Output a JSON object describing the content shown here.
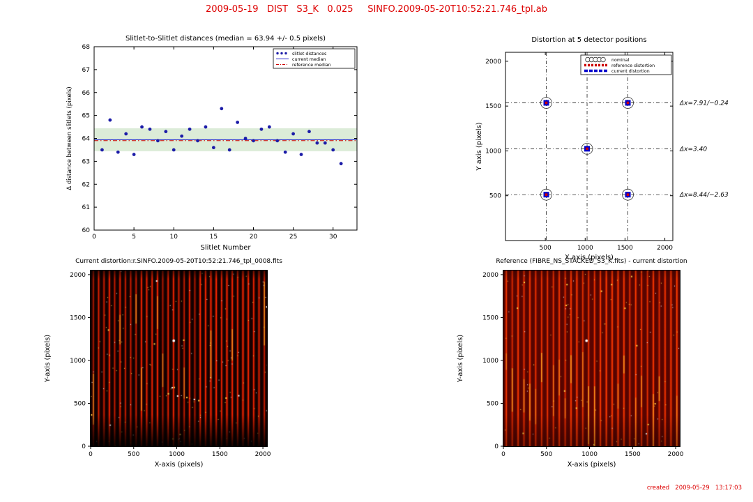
{
  "page": {
    "title": "2009-05-19   DIST   S3_K   0.025     SINFO.2009-05-20T10:52:21.746_tpl.ab",
    "title_color": "#dd0000",
    "footer": "created   2009-05-29   13:17:03"
  },
  "chart_data": [
    {
      "id": "slitlet_distances",
      "type": "scatter",
      "title": "Slitlet-to-Slitlet distances (median =  63.94 +/- 0.5 pixels)",
      "xlabel": "Slitlet Number",
      "ylabel": "Δ distance between slitlets (pixels)",
      "xlim": [
        0,
        33
      ],
      "ylim": [
        60,
        68
      ],
      "xticks": [
        0,
        5,
        10,
        15,
        20,
        25,
        30
      ],
      "yticks": [
        60,
        61,
        62,
        63,
        64,
        65,
        66,
        67,
        68
      ],
      "median": 63.94,
      "reference_median": 63.9,
      "band_halfwidth": 0.5,
      "x": [
        1,
        2,
        3,
        4,
        5,
        6,
        7,
        8,
        9,
        10,
        11,
        12,
        13,
        14,
        15,
        16,
        17,
        18,
        19,
        20,
        21,
        22,
        23,
        24,
        25,
        26,
        27,
        28,
        29,
        30,
        31
      ],
      "y": [
        63.5,
        64.8,
        63.4,
        64.2,
        63.3,
        64.5,
        64.4,
        63.9,
        64.3,
        63.5,
        64.1,
        64.4,
        63.9,
        64.5,
        63.6,
        65.3,
        63.5,
        64.7,
        64.0,
        63.9,
        64.4,
        64.5,
        63.9,
        63.4,
        64.2,
        63.3,
        64.3,
        63.8,
        63.8,
        63.5,
        62.9
      ],
      "legend": [
        {
          "label": "slitlet distances",
          "marker": "dots"
        },
        {
          "label": "current median",
          "marker": "line"
        },
        {
          "label": "reference median",
          "marker": "dashdot"
        }
      ],
      "colors": {
        "points": "#1c1ca8",
        "median_line": "#2222cc",
        "reference_line": "#cc0000",
        "band": "#dcecd8"
      }
    },
    {
      "id": "distortion_positions",
      "type": "scatter",
      "title": "Distortion at 5 detector positions",
      "xlabel": "X axis (pixels)",
      "ylabel": "Y axis (pixels)",
      "xlim": [
        0,
        2100
      ],
      "ylim": [
        0,
        2100
      ],
      "xticks": [
        500,
        1000,
        1500,
        2000
      ],
      "yticks": [
        500,
        1000,
        1500,
        2000
      ],
      "positions": [
        [
          512,
          512
        ],
        [
          1536,
          512
        ],
        [
          1024,
          1024
        ],
        [
          512,
          1536
        ],
        [
          1536,
          1536
        ]
      ],
      "crosshair_x": [
        512,
        1024,
        1536
      ],
      "crosshair_y": [
        512,
        1024,
        1536
      ],
      "legend": [
        {
          "label": "nominal",
          "marker": "circles"
        },
        {
          "label": "reference distortion",
          "marker": "red-dashes"
        },
        {
          "label": "current distortion",
          "marker": "blue-squares"
        }
      ],
      "annotations": [
        {
          "text": "Δx=7.91/−0.24",
          "y": 1536
        },
        {
          "text": "Δx=3.40",
          "y": 1024
        },
        {
          "text": "Δx=8.44/−2.63",
          "y": 512
        }
      ],
      "colors": {
        "nominal": "#333333",
        "reference": "#cc0000",
        "current": "#0000cc",
        "annotation": "#2222bb"
      }
    },
    {
      "id": "current_distortion_image",
      "type": "heatmap",
      "title": "Current distortion:r.SINFO.2009-05-20T10:52:21.746_tpl_0008.fits",
      "xlabel": "X-axis (pixels)",
      "ylabel": "Y-axis (pixels)",
      "xlim": [
        0,
        2048
      ],
      "ylim": [
        0,
        2048
      ],
      "xticks": [
        0,
        500,
        1000,
        1500,
        2000
      ],
      "yticks": [
        0,
        500,
        1000,
        1500,
        2000
      ],
      "description": "raw detector frame: ~33 bright red vertical slitlet traces on dark background with hot-pixel speckles",
      "render": {
        "seed": 7,
        "stripe_count": 33,
        "background": "#100000",
        "stripe_color": "#c01400",
        "core_color": "#ff2a00",
        "min_bright": 0.5,
        "hot_fraction": 0.2,
        "hot_ymin": 0.05,
        "hot_yspan": 0.55,
        "speckles": 180,
        "white_fraction": 0.45,
        "top_fade": 0.55,
        "bottom_fade": 0.9,
        "marker": [
          965,
          1230
        ]
      }
    },
    {
      "id": "reference_minus_current_image",
      "type": "heatmap",
      "title": "Reference (FIBRE_NS_STACKED_S3_K.fits) - current distortion",
      "xlabel": "X-axis (pixels)",
      "ylabel": "Y-axis (pixels)",
      "xlim": [
        0,
        2048
      ],
      "ylim": [
        0,
        2048
      ],
      "xticks": [
        0,
        500,
        1000,
        1500,
        2000
      ],
      "yticks": [
        0,
        500,
        1000,
        1500,
        2000
      ],
      "description": "stacked fibre reference frame: ~30 bright red vertical traces, brighter background, yellow hot segments in lower half",
      "render": {
        "seed": 13,
        "stripe_count": 30,
        "background": "#5c0400",
        "stripe_color": "#e01a00",
        "core_color": "#ff4000",
        "min_bright": 0.6,
        "hot_fraction": 0.5,
        "hot_ymin": 0.45,
        "hot_yspan": 0.3,
        "speckles": 120,
        "white_fraction": 0.3,
        "top_fade": 0.2,
        "bottom_fade": 0.3,
        "marker": [
          965,
          1230
        ]
      }
    }
  ]
}
